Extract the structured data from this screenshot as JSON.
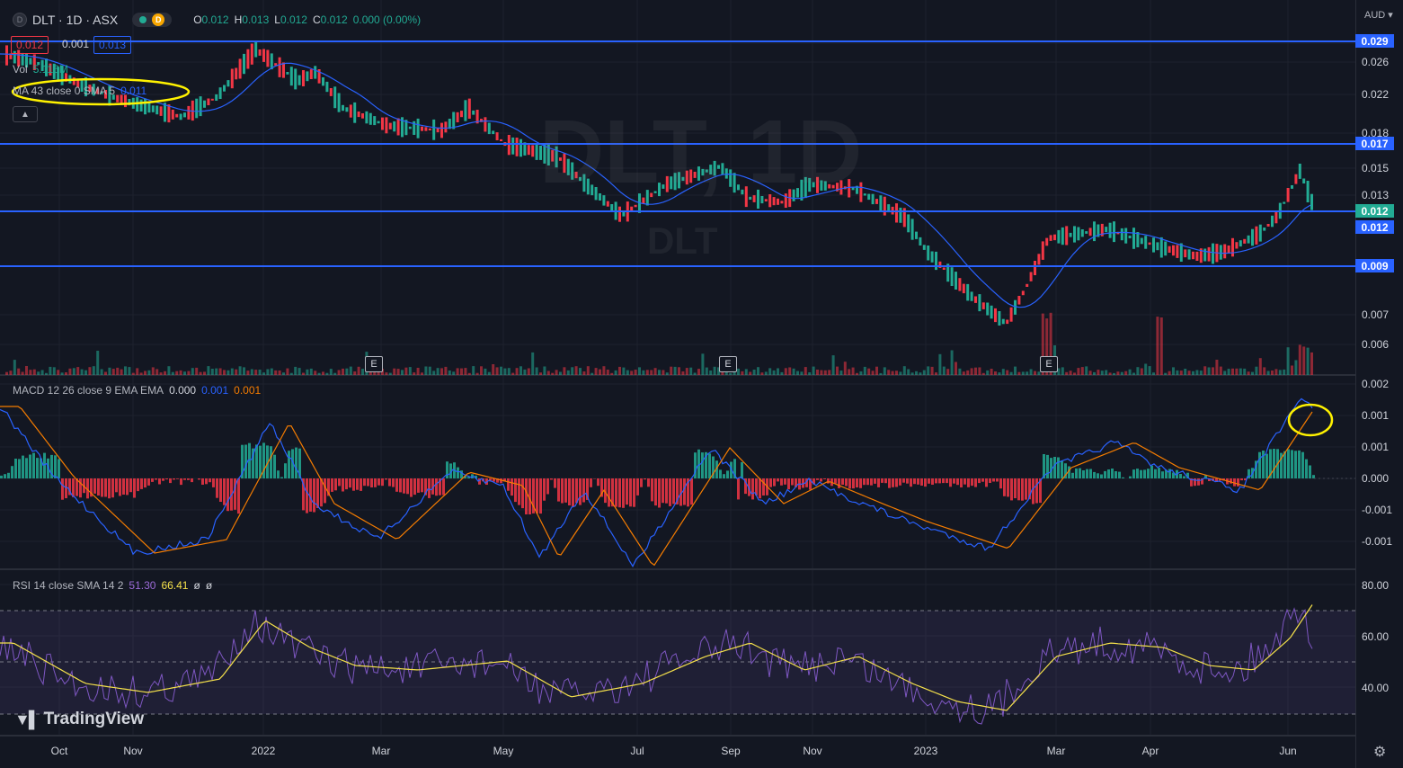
{
  "header": {
    "symbol_badge": "D",
    "title": "DLT · 1D · ASX",
    "data_badge": "D",
    "ohlc": [
      {
        "k": "O",
        "v": "0.012"
      },
      {
        "k": "H",
        "v": "0.013"
      },
      {
        "k": "L",
        "v": "0.012"
      },
      {
        "k": "C",
        "v": "0.012"
      },
      {
        "k": "",
        "v": "0.000 (0.00%)"
      }
    ]
  },
  "order": {
    "sell": "0.012",
    "spread": "0.001",
    "buy": "0.013"
  },
  "legends": {
    "vol_label": "Vol",
    "vol_value": "5.116M",
    "ma_text": "MA 43 close 0 SMA 5",
    "ma_value": "0.011",
    "macd_text": "MACD 12 26 close 9 EMA EMA",
    "macd_v1": "0.000",
    "macd_v2": "0.001",
    "macd_v3": "0.001",
    "rsi_text": "RSI 14 close SMA 14 2",
    "rsi_v1": "51.30",
    "rsi_v2": "66.41",
    "rsi_v3": "ø",
    "rsi_v4": "ø"
  },
  "watermark": {
    "main": "DLT, 1D",
    "sub": "DLT"
  },
  "currency": "AUD",
  "price_axis": [
    "0.026",
    "0.022",
    "0.018",
    "0.015",
    "0.013",
    "0.007",
    "0.006"
  ],
  "price_tags": {
    "t1": "0.029",
    "t2": "0.017",
    "t3": "0.012",
    "t4": "0.012",
    "t5": "0.009"
  },
  "macd_axis": [
    "0.002",
    "0.001",
    "0.001",
    "0.000",
    "-0.001",
    "-0.001"
  ],
  "rsi_axis": [
    "80.00",
    "60.00",
    "40.00"
  ],
  "time_axis": [
    "Oct",
    "Nov",
    "2022",
    "Mar",
    "May",
    "Jul",
    "Sep",
    "Nov",
    "2023",
    "Mar",
    "Apr",
    "Jun"
  ],
  "earnings_marker": "E",
  "logo_text": "TradingView",
  "colors": {
    "up": "#22ab94",
    "down": "#f23645",
    "line_blue": "#2962ff",
    "ma": "#2962ff",
    "signal": "#f57c00",
    "rsi": "#7e57c2",
    "rsi_ma": "#f5e14b",
    "annotation": "#fff200"
  }
}
